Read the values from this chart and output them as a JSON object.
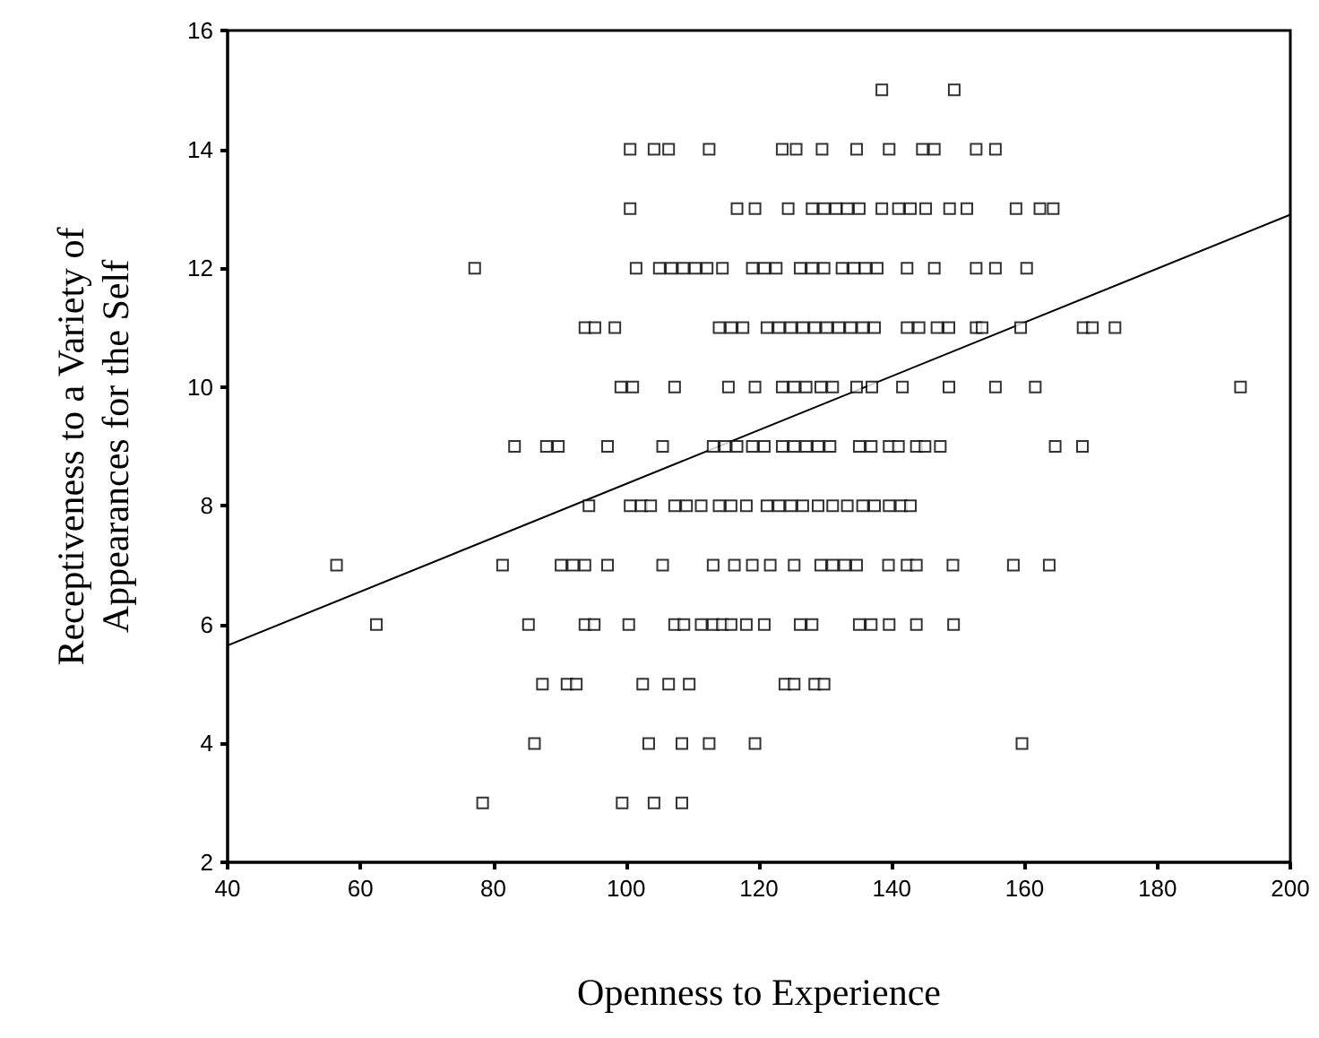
{
  "chart_data": {
    "type": "scatter",
    "xlabel": "Openness to Experience",
    "ylabel": "Receptiveness to a Variety of\nAppearances for the Self",
    "xlim": [
      40,
      200
    ],
    "xticks": [
      40,
      60,
      80,
      100,
      120,
      140,
      160,
      180,
      200
    ],
    "ylim": [
      2,
      16
    ],
    "yticks": [
      2,
      4,
      6,
      8,
      10,
      12,
      14,
      16
    ],
    "grid": false,
    "marker": "square",
    "series": [
      {
        "color": "#000000",
        "x": [
          138.5,
          149.4,
          100.6,
          104.2,
          106.4,
          112.5,
          123.5,
          125.6,
          129.5,
          134.7,
          139.6,
          144.6,
          146.4,
          152.7,
          155.6,
          100.6,
          116.7,
          119.4,
          124.4,
          128,
          129.8,
          131.6,
          133.3,
          135.1,
          138.5,
          141,
          142.8,
          145.1,
          148.7,
          151.3,
          158.7,
          162.3,
          164.3,
          77.2,
          101.5,
          105,
          106.8,
          108.6,
          110.4,
          112.2,
          114.5,
          119,
          120.8,
          122.6,
          126.2,
          128,
          129.8,
          132.5,
          134.3,
          136,
          137.8,
          142.3,
          146.4,
          152.7,
          155.6,
          160.3,
          93.8,
          95.3,
          98.3,
          114,
          115.8,
          117.6,
          121.2,
          123,
          124.8,
          126.6,
          128.4,
          130.2,
          132,
          133.8,
          135.6,
          137.4,
          142.3,
          144.1,
          146.8,
          148.6,
          152.7,
          153.6,
          159.4,
          168.8,
          170.2,
          173.6,
          99.2,
          101,
          107.3,
          115.4,
          119.4,
          123.5,
          125.3,
          127.1,
          129.3,
          131.1,
          134.7,
          137,
          141.6,
          148.6,
          155.6,
          161.6,
          192.5,
          83.2,
          88,
          89.8,
          97.2,
          105.5,
          113.1,
          114.9,
          116.7,
          119,
          120.8,
          123.5,
          125.3,
          127.1,
          128.9,
          130.7,
          135.1,
          136.9,
          139.6,
          141,
          143.7,
          145,
          147.3,
          164.6,
          168.7,
          94.4,
          100.6,
          102.3,
          103.7,
          107.3,
          109.1,
          111.3,
          114,
          115.8,
          118.1,
          121.2,
          123,
          124.8,
          126.6,
          128.9,
          131.1,
          133.3,
          135.6,
          137.4,
          139.6,
          141.4,
          142.8,
          56.4,
          81.4,
          90.2,
          92,
          93.8,
          97.2,
          105.5,
          113.1,
          116.3,
          119,
          121.7,
          125.3,
          129.3,
          131.1,
          132.9,
          134.7,
          139.5,
          142.3,
          143.7,
          149.2,
          158.3,
          163.7,
          62.4,
          85.3,
          93.8,
          95.2,
          100.4,
          107.3,
          108.7,
          111.3,
          113.1,
          114.5,
          115.8,
          118.1,
          120.8,
          126.2,
          128,
          135.1,
          136.9,
          139.6,
          143.7,
          149.3,
          87.4,
          91.1,
          92.5,
          102.5,
          106.4,
          109.5,
          123.9,
          125.3,
          128.4,
          129.8,
          86.2,
          103.4,
          108.4,
          112.5,
          119.4,
          159.6,
          78.4,
          99.4,
          104.2,
          108.4
        ],
        "values": [
          15,
          15,
          14,
          14,
          14,
          14,
          14,
          14,
          14,
          14,
          14,
          14,
          14,
          14,
          14,
          13,
          13,
          13,
          13,
          13,
          13,
          13,
          13,
          13,
          13,
          13,
          13,
          13,
          13,
          13,
          13,
          13,
          13,
          12,
          12,
          12,
          12,
          12,
          12,
          12,
          12,
          12,
          12,
          12,
          12,
          12,
          12,
          12,
          12,
          12,
          12,
          12,
          12,
          12,
          12,
          12,
          11,
          11,
          11,
          11,
          11,
          11,
          11,
          11,
          11,
          11,
          11,
          11,
          11,
          11,
          11,
          11,
          11,
          11,
          11,
          11,
          11,
          11,
          11,
          11,
          11,
          11,
          10,
          10,
          10,
          10,
          10,
          10,
          10,
          10,
          10,
          10,
          10,
          10,
          10,
          10,
          10,
          10,
          10,
          9,
          9,
          9,
          9,
          9,
          9,
          9,
          9,
          9,
          9,
          9,
          9,
          9,
          9,
          9,
          9,
          9,
          9,
          9,
          9,
          9,
          9,
          9,
          9,
          8,
          8,
          8,
          8,
          8,
          8,
          8,
          8,
          8,
          8,
          8,
          8,
          8,
          8,
          8,
          8,
          8,
          8,
          8,
          8,
          8,
          8,
          7,
          7,
          7,
          7,
          7,
          7,
          7,
          7,
          7,
          7,
          7,
          7,
          7,
          7,
          7,
          7,
          7,
          7,
          7,
          7,
          7,
          7,
          6,
          6,
          6,
          6,
          6,
          6,
          6,
          6,
          6,
          6,
          6,
          6,
          6,
          6,
          6,
          6,
          6,
          6,
          6,
          6,
          5,
          5,
          5,
          5,
          5,
          5,
          5,
          5,
          5,
          5,
          4,
          4,
          4,
          4,
          4,
          4,
          3,
          3,
          3,
          3
        ]
      },
      {
        "type": "line",
        "marker": "none",
        "color": "#000000",
        "x": [
          40,
          200
        ],
        "values": [
          5.65,
          12.9
        ]
      }
    ]
  }
}
